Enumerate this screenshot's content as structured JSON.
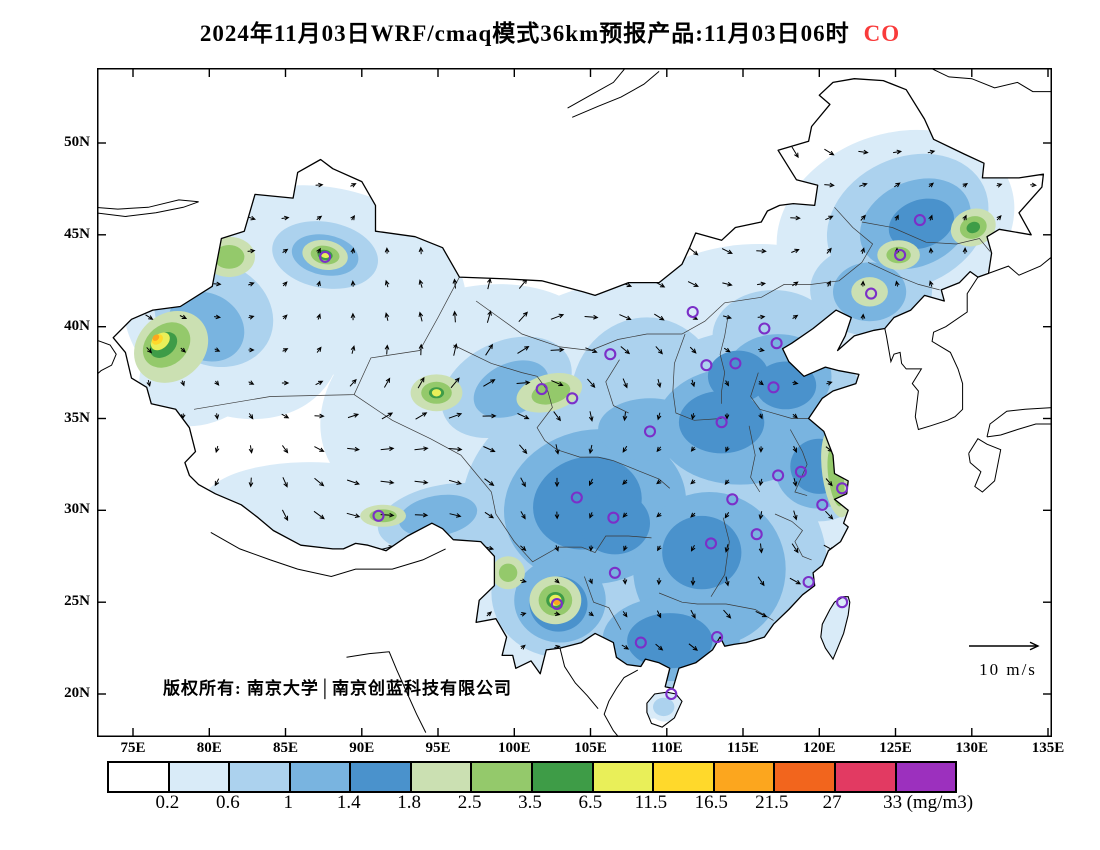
{
  "title": {
    "prefix": "2024年11月03日WRF/cmaq模式36km预报产品:11月03日06时",
    "pollutant": "CO"
  },
  "map": {
    "lat_ticks": [
      "50N",
      "45N",
      "40N",
      "35N",
      "30N",
      "25N",
      "20N"
    ],
    "lon_ticks": [
      "75E",
      "80E",
      "85E",
      "90E",
      "95E",
      "100E",
      "105E",
      "110E",
      "115E",
      "120E",
      "125E",
      "130E",
      "135E"
    ],
    "copyright": "版权所有: 南京大学│南京创蓝科技有限公司",
    "wind_scale_label": "10 m/s"
  },
  "colors": {
    "pollutant_label": "#f93b3b",
    "station_marker": "#7b2fc8",
    "map_outline": "#000000",
    "wind_arrow": "#000000"
  },
  "chart_data": {
    "type": "heatmap",
    "title": "2024年11月03日WRF/cmaq模式36km预报产品:11月03日06时 CO",
    "model": "WRF/CMAQ 36km",
    "variable": "CO",
    "units": "mg/m3",
    "forecast_valid": "2024-11-03 06时",
    "lon_range": [
      72.6,
      135
    ],
    "lat_range": [
      17.7,
      54.1
    ],
    "lon_tick_values": [
      75,
      80,
      85,
      90,
      95,
      100,
      105,
      110,
      115,
      120,
      125,
      130,
      135
    ],
    "lat_tick_values": [
      50,
      45,
      40,
      35,
      30,
      25,
      20
    ],
    "colorbar_levels": [
      0.2,
      0.6,
      1,
      1.4,
      1.8,
      2.5,
      3.5,
      6.5,
      11.5,
      16.5,
      21.5,
      27,
      33
    ],
    "colorbar_colors": [
      "#ffffff",
      "#d9ebf8",
      "#acd2ee",
      "#79b4e0",
      "#4a92cc",
      "#cbe0b2",
      "#94c96b",
      "#3e9c47",
      "#e9ef59",
      "#ffd92b",
      "#fca61e",
      "#f2651d",
      "#e23a62",
      "#9c30be"
    ],
    "legend_labels": [
      "0.2",
      "0.6",
      "1",
      "1.4",
      "1.8",
      "2.5",
      "3.5",
      "6.5",
      "11.5",
      "16.5",
      "21.5",
      "27",
      "33"
    ],
    "legend_suffix": "(mg/m3)",
    "wind_reference": {
      "speed": 10,
      "units": "m/s"
    }
  }
}
